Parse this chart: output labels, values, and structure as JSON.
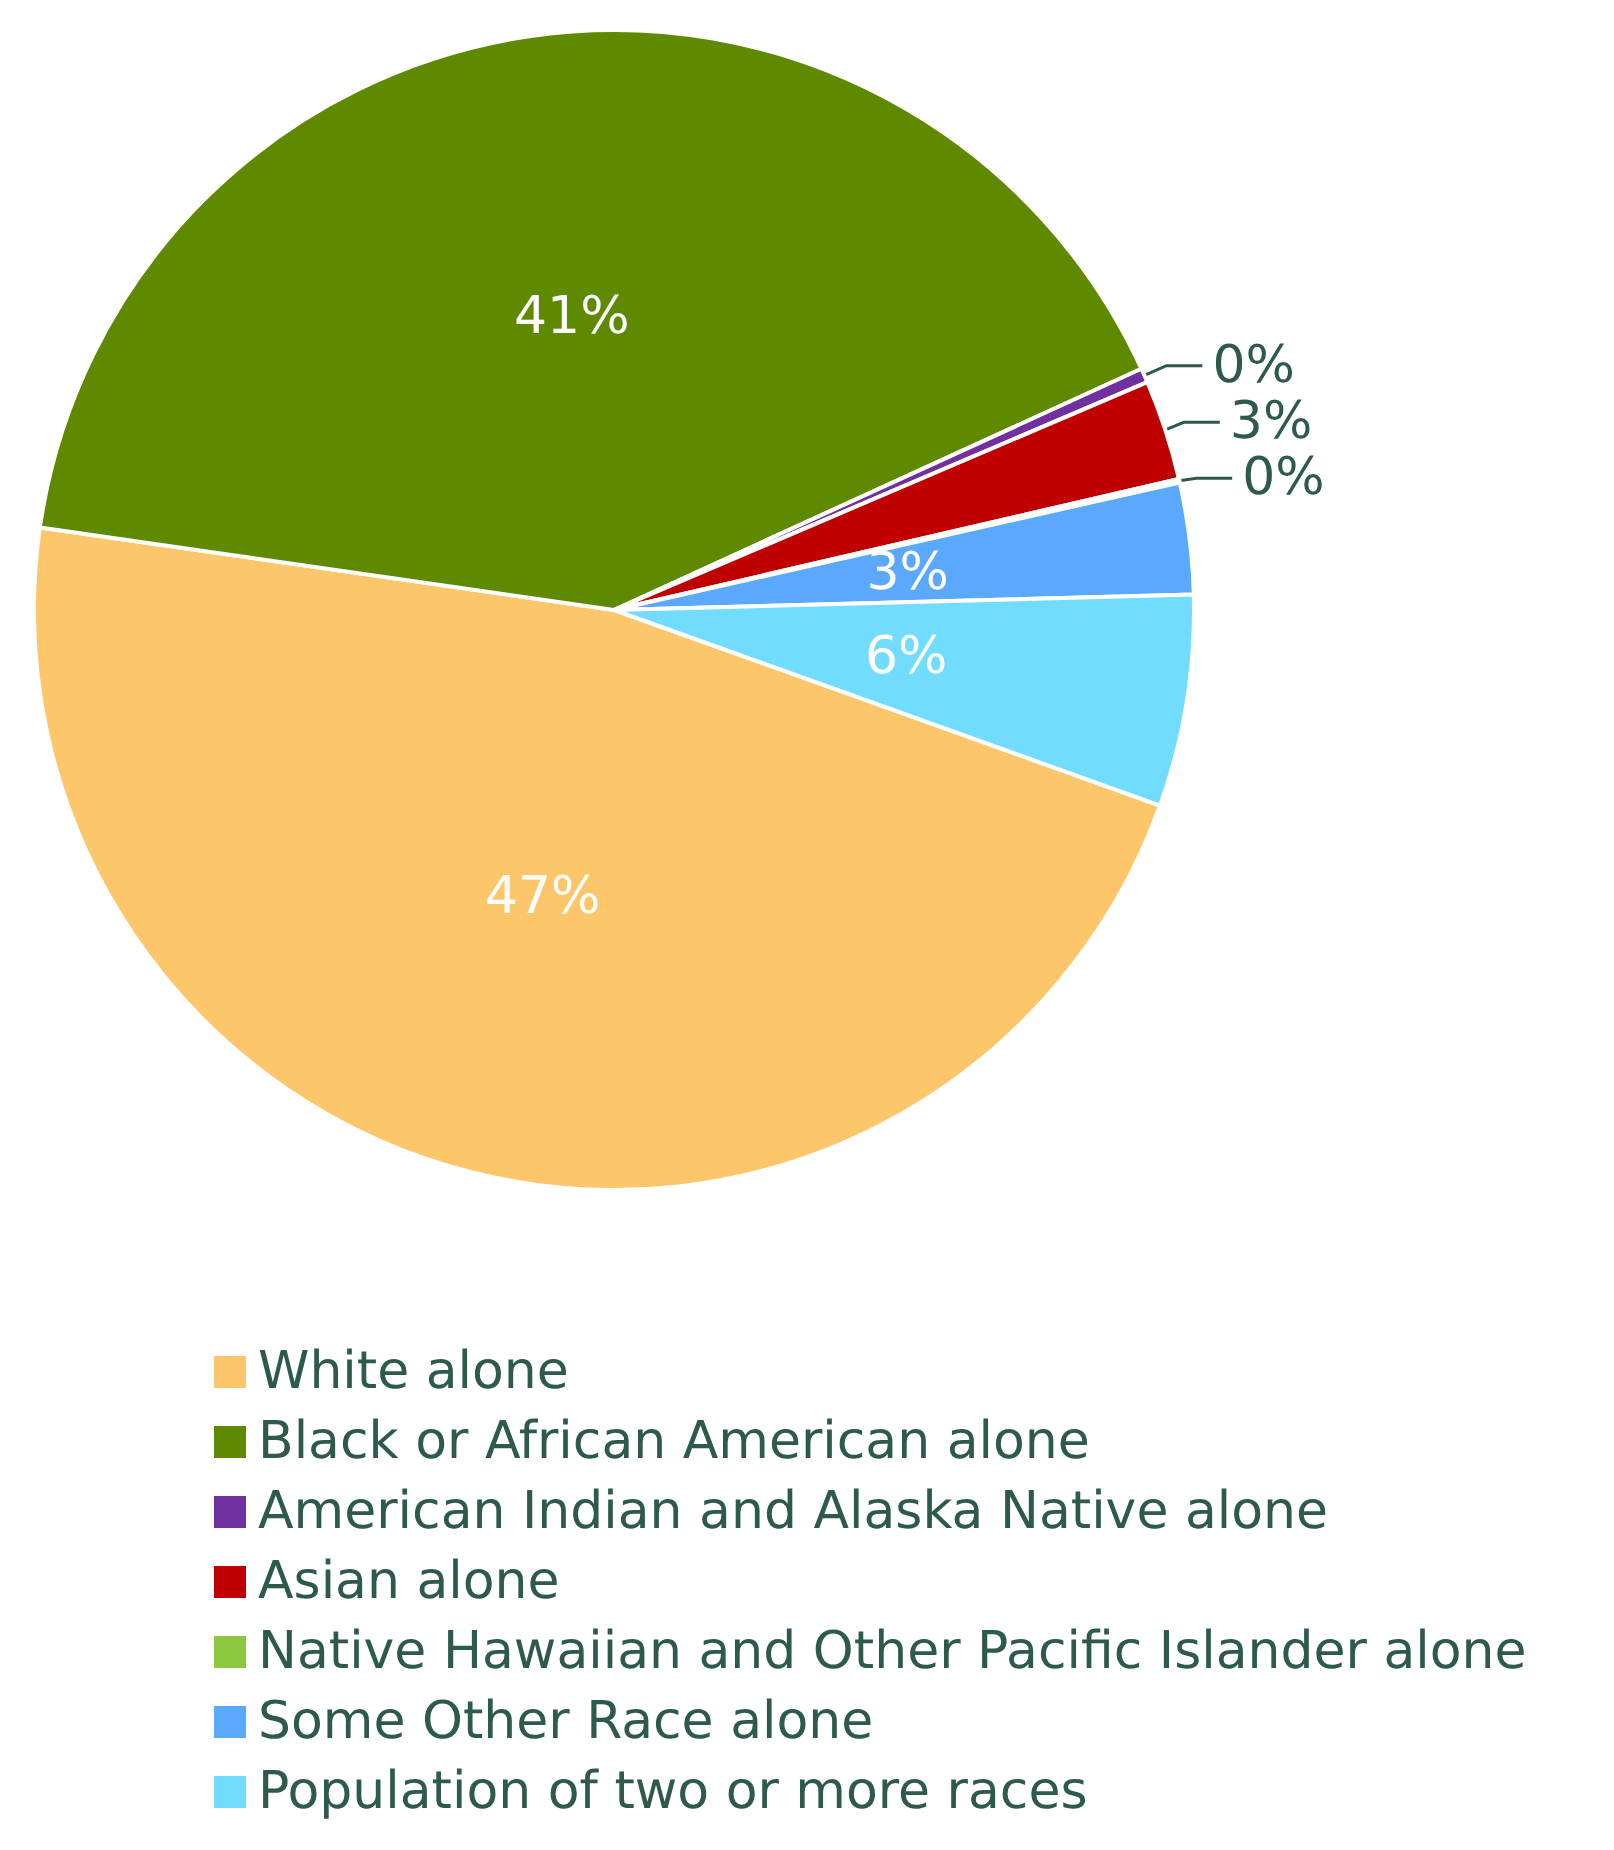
{
  "chart_data": {
    "type": "pie",
    "categories": [
      "White alone",
      "Black or African American alone",
      "American Indian and Alaska Native alone",
      "Asian alone",
      "Native Hawaiian and Other Pacific Islander alone",
      "Some Other Race alone",
      "Population of two or more races"
    ],
    "values": [
      46.8,
      40.9,
      0.4,
      2.8,
      0.1,
      3.1,
      5.9
    ],
    "value_labels": [
      "47%",
      "41%",
      "0%",
      "3%",
      "0%",
      "3%",
      "6%"
    ],
    "colors": [
      "#fdc66a",
      "#5f8a00",
      "#7030a0",
      "#c00000",
      "#8dc63f",
      "#5ba8ff",
      "#72dcff"
    ],
    "legend": "bottom"
  }
}
